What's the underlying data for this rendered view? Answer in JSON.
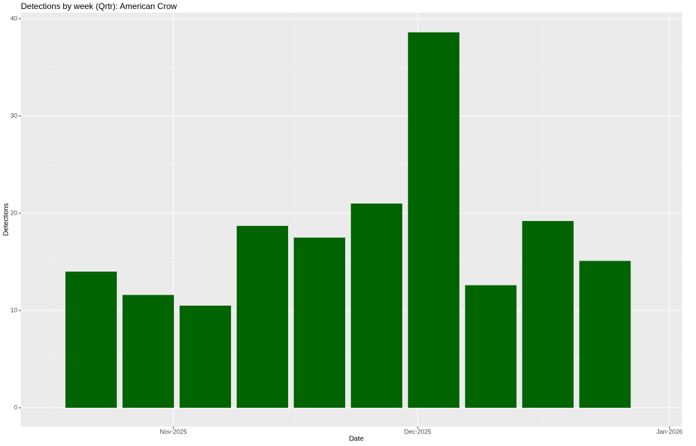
{
  "chart_data": {
    "type": "bar",
    "title": "Detections by week (Qrtr): American Crow",
    "x_label": "Date",
    "y_label": "Detections",
    "categories": [
      null,
      null,
      null,
      null,
      null,
      null,
      null,
      null,
      null,
      null
    ],
    "x": [
      0,
      1,
      2,
      3,
      4,
      5,
      6,
      7,
      8,
      9
    ],
    "values": [
      14,
      11.6,
      10.5,
      18.7,
      17.5,
      21,
      38.6,
      12.6,
      19.2,
      15.1
    ],
    "color": "#006400",
    "xlim": [
      -1.23,
      10.35
    ],
    "xticks": [
      {
        "value": 1.44,
        "label": "Nov-2025"
      },
      {
        "value": 5.72,
        "label": "Dec-2025"
      },
      {
        "value": 10.13,
        "label": "Jan-2026"
      }
    ],
    "ylim": [
      -1.93,
      40.64
    ],
    "yticks": [
      0,
      10,
      20,
      30,
      40
    ],
    "grid": true
  }
}
